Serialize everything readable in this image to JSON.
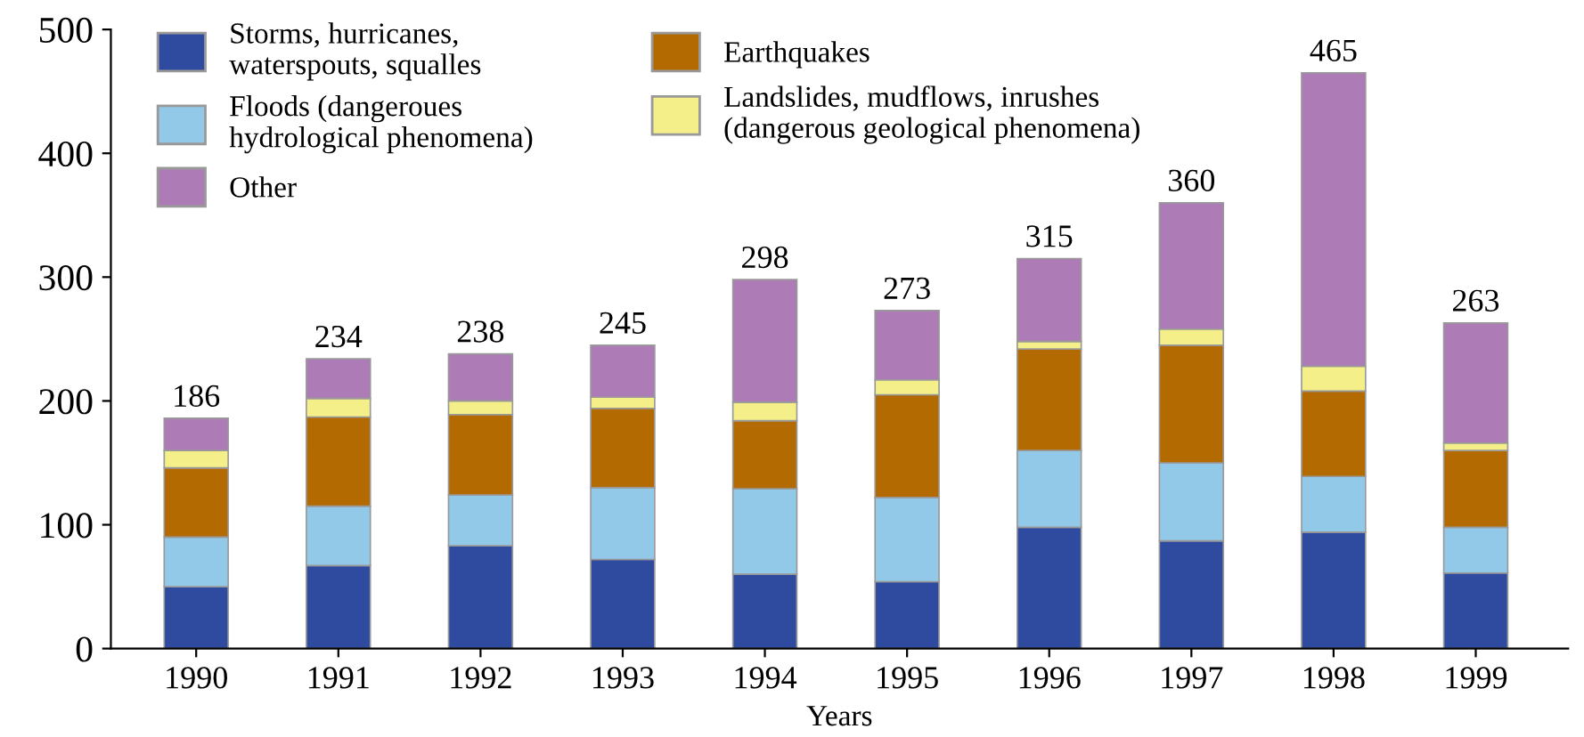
{
  "chart_data": {
    "type": "bar",
    "stacked": true,
    "xlabel": "Years",
    "categories": [
      "1990",
      "1991",
      "1992",
      "1993",
      "1994",
      "1995",
      "1996",
      "1997",
      "1998",
      "1999"
    ],
    "series": [
      {
        "name": "Storms, hurricanes,\nwaterspouts, squalles",
        "color": "#2f4b9f",
        "values": [
          50,
          67,
          83,
          72,
          60,
          54,
          98,
          87,
          94,
          61
        ]
      },
      {
        "name": "Floods (dangeroues\nhydrological phenomena)",
        "color": "#92c9e8",
        "values": [
          40,
          48,
          41,
          58,
          69,
          68,
          62,
          63,
          45,
          37
        ]
      },
      {
        "name": "Earthquakes",
        "color": "#b36a00",
        "values": [
          56,
          72,
          65,
          64,
          55,
          83,
          82,
          95,
          69,
          62
        ]
      },
      {
        "name": "Landslides, mudflows, inrushes\n(dangerous geological phenomena)",
        "color": "#f5ef8a",
        "values": [
          14,
          15,
          11,
          9,
          15,
          12,
          6,
          13,
          20,
          6
        ]
      },
      {
        "name": "Other",
        "color": "#ad7bb5",
        "values": [
          26,
          32,
          38,
          42,
          99,
          56,
          67,
          102,
          237,
          97
        ]
      }
    ],
    "totals": [
      "186",
      "234",
      "238",
      "245",
      "298",
      "273",
      "315",
      "360",
      "465",
      "263"
    ],
    "ylim": [
      0,
      500
    ],
    "yticks": [
      0,
      100,
      200,
      300,
      400,
      500
    ],
    "grid": false,
    "legend": "top left"
  }
}
